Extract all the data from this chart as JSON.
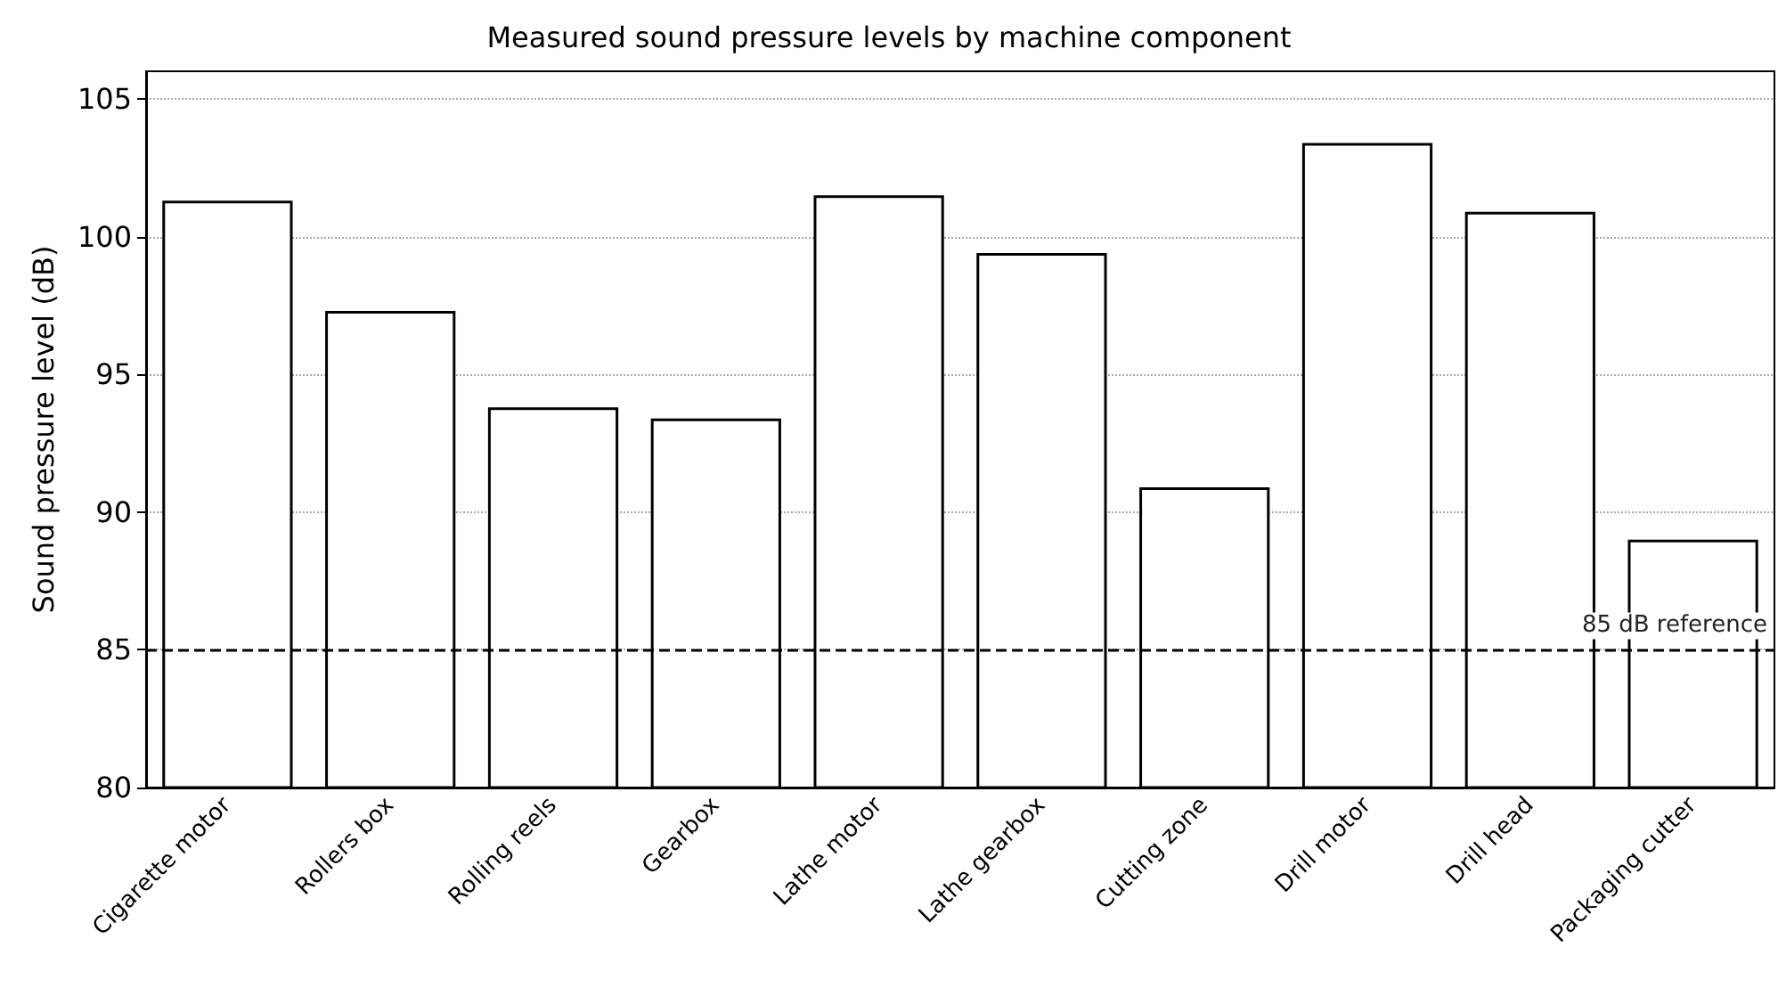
{
  "chart_data": {
    "type": "bar",
    "title": "Measured sound pressure levels by machine component",
    "ylabel": "Sound pressure level (dB)",
    "categories": [
      "Cigarette motor",
      "Rollers box",
      "Rolling reels",
      "Gearbox",
      "Lathe motor",
      "Lathe gearbox",
      "Cutting zone",
      "Drill motor",
      "Drill head",
      "Packaging cutter"
    ],
    "values": [
      101.3,
      97.3,
      93.8,
      93.4,
      101.5,
      99.4,
      90.9,
      103.4,
      100.9,
      89.0
    ],
    "color": "#ffffff",
    "ylim": [
      80,
      106
    ],
    "yticks": [
      80,
      85,
      90,
      95,
      100,
      105
    ],
    "grid": "y",
    "ref_lines": [
      {
        "axis": "y",
        "value": 85,
        "label": "85 dB reference",
        "line_style": "dashed",
        "color": "#000000"
      }
    ]
  }
}
